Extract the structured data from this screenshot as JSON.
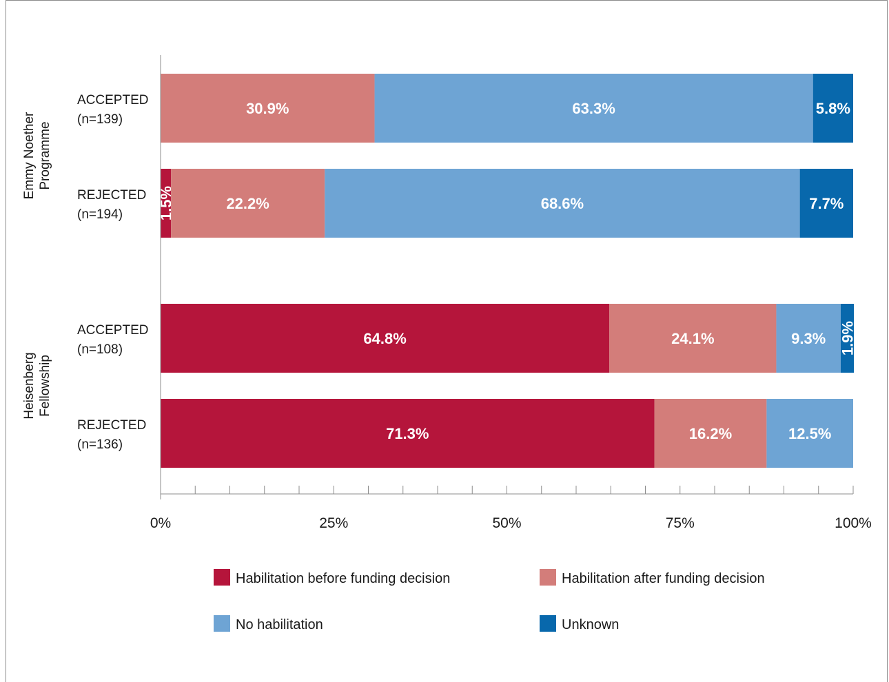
{
  "chart_data": {
    "type": "bar",
    "orientation": "horizontal",
    "stacked": true,
    "title": "",
    "xlabel": "",
    "ylabel": "",
    "xlim": [
      0,
      100
    ],
    "x_ticks": [
      "0%",
      "25%",
      "50%",
      "75%",
      "100%"
    ],
    "groups": [
      {
        "name": "Emmy Noether Programme",
        "name_lines": [
          "Emmy Noether",
          "Programme"
        ],
        "categories": [
          {
            "label_lines": [
              "ACCEPTED",
              "(n=139)"
            ],
            "values": [
              0,
              30.9,
              63.3,
              5.8
            ]
          },
          {
            "label_lines": [
              "REJECTED",
              "(n=194)"
            ],
            "values": [
              1.5,
              22.2,
              68.6,
              7.7
            ]
          }
        ]
      },
      {
        "name": "Heisenberg Fellowship",
        "name_lines": [
          "Heisenberg",
          "Fellowship"
        ],
        "categories": [
          {
            "label_lines": [
              "ACCEPTED",
              "(n=108)"
            ],
            "values": [
              64.8,
              24.1,
              9.3,
              1.9
            ]
          },
          {
            "label_lines": [
              "REJECTED",
              "(n=136)"
            ],
            "values": [
              71.3,
              16.2,
              12.5,
              0
            ]
          }
        ]
      }
    ],
    "series": [
      {
        "name": "Habitation before funding decision",
        "color": "#b5153b"
      },
      {
        "name": "Habilitation after funding decision",
        "color": "#d37d7a"
      },
      {
        "name": "No habilitation",
        "color": "#6ea4d4"
      },
      {
        "name": "Unknown",
        "color": "#0868ac"
      }
    ],
    "legend": {
      "position": "bottom",
      "labels": [
        "Habilitation before funding decision",
        "Habilitation after funding decision",
        "No habilitation",
        "Unknown"
      ]
    },
    "grid": false
  }
}
